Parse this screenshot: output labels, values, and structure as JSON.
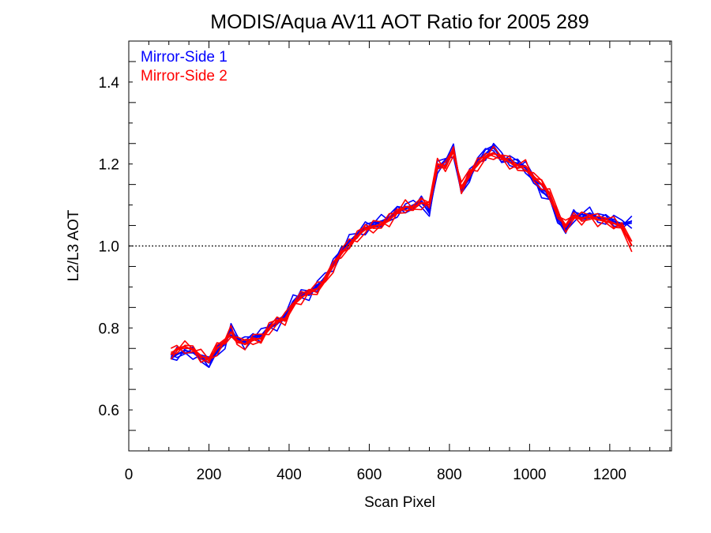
{
  "chart_data": {
    "type": "line",
    "title": "MODIS/Aqua AV11 AOT Ratio for 2005 289",
    "xlabel": "Scan Pixel",
    "ylabel": "L2/L3 AOT",
    "xlim": [
      0,
      1354
    ],
    "ylim": [
      0.5,
      1.5
    ],
    "x_ticks": [
      0,
      200,
      400,
      600,
      800,
      1000,
      1200
    ],
    "x_tick_labels": [
      "0",
      "200",
      "400",
      "600",
      "800",
      "1000",
      "1200"
    ],
    "y_ticks": [
      0.6,
      0.8,
      1.0,
      1.2,
      1.4
    ],
    "y_tick_labels": [
      "0.6",
      "0.8",
      "1.0",
      "1.2",
      "1.4"
    ],
    "reference_line": {
      "y": 1.0,
      "style": "dotted",
      "color": "#000000"
    },
    "legend_position": "top-left",
    "grid": false,
    "x": [
      105,
      120,
      140,
      160,
      180,
      200,
      220,
      240,
      255,
      270,
      290,
      310,
      330,
      350,
      370,
      390,
      410,
      430,
      450,
      470,
      490,
      510,
      530,
      550,
      570,
      590,
      610,
      630,
      650,
      670,
      690,
      710,
      730,
      750,
      770,
      790,
      810,
      830,
      850,
      870,
      890,
      910,
      930,
      950,
      970,
      990,
      1010,
      1030,
      1050,
      1070,
      1090,
      1110,
      1130,
      1150,
      1170,
      1190,
      1210,
      1230,
      1255
    ],
    "series": [
      {
        "name": "Mirror-Side 1",
        "color": "#0000ff",
        "values": [
          0.725,
          0.735,
          0.745,
          0.74,
          0.725,
          0.715,
          0.745,
          0.76,
          0.795,
          0.775,
          0.765,
          0.775,
          0.78,
          0.805,
          0.81,
          0.825,
          0.865,
          0.885,
          0.88,
          0.9,
          0.925,
          0.955,
          0.985,
          1.01,
          1.03,
          1.045,
          1.05,
          1.06,
          1.07,
          1.085,
          1.09,
          1.1,
          1.11,
          1.08,
          1.19,
          1.21,
          1.235,
          1.13,
          1.17,
          1.21,
          1.225,
          1.24,
          1.215,
          1.21,
          1.2,
          1.19,
          1.165,
          1.135,
          1.115,
          1.07,
          1.04,
          1.075,
          1.07,
          1.08,
          1.07,
          1.065,
          1.06,
          1.055,
          1.06
        ]
      },
      {
        "name": "Mirror-Side 2",
        "color": "#ff0000",
        "values": [
          0.735,
          0.75,
          0.755,
          0.745,
          0.73,
          0.725,
          0.75,
          0.765,
          0.79,
          0.77,
          0.76,
          0.77,
          0.775,
          0.8,
          0.815,
          0.82,
          0.86,
          0.875,
          0.885,
          0.895,
          0.92,
          0.95,
          0.98,
          1.005,
          1.025,
          1.04,
          1.045,
          1.055,
          1.065,
          1.08,
          1.095,
          1.095,
          1.105,
          1.1,
          1.2,
          1.195,
          1.23,
          1.14,
          1.18,
          1.2,
          1.215,
          1.225,
          1.22,
          1.205,
          1.19,
          1.195,
          1.17,
          1.15,
          1.125,
          1.08,
          1.05,
          1.07,
          1.065,
          1.075,
          1.065,
          1.06,
          1.055,
          1.05,
          1.0
        ]
      }
    ]
  }
}
